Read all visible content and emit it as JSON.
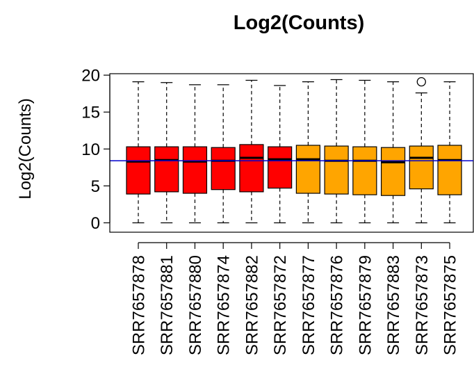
{
  "chart_data": {
    "type": "boxplot",
    "title": "Log2(Counts)",
    "xlabel": "",
    "ylabel": "Log2(Counts)",
    "ylim": [
      0,
      20
    ],
    "yticks": [
      0,
      5,
      10,
      15,
      20
    ],
    "grid": false,
    "reference_line": {
      "y": 8.4,
      "color": "#0000cc"
    },
    "colors": {
      "group_a": "#ff0000",
      "group_b": "#ffa500",
      "outline": "#000000"
    },
    "categories": [
      "SRR7657878",
      "SRR7657881",
      "SRR7657880",
      "SRR7657874",
      "SRR7657882",
      "SRR7657872",
      "SRR7657877",
      "SRR7657876",
      "SRR7657879",
      "SRR7657883",
      "SRR7657873",
      "SRR7657875"
    ],
    "groups": [
      "group_a",
      "group_a",
      "group_a",
      "group_a",
      "group_a",
      "group_a",
      "group_b",
      "group_b",
      "group_b",
      "group_b",
      "group_b",
      "group_b"
    ],
    "boxes": [
      {
        "min": 0,
        "q1": 3.9,
        "median": 8.3,
        "q3": 10.3,
        "max": 19.1,
        "outliers": []
      },
      {
        "min": 0,
        "q1": 4.2,
        "median": 8.5,
        "q3": 10.3,
        "max": 19.0,
        "outliers": []
      },
      {
        "min": 0,
        "q1": 4.0,
        "median": 8.3,
        "q3": 10.3,
        "max": 18.7,
        "outliers": []
      },
      {
        "min": 0,
        "q1": 4.5,
        "median": 8.4,
        "q3": 10.2,
        "max": 18.7,
        "outliers": []
      },
      {
        "min": 0,
        "q1": 4.2,
        "median": 8.8,
        "q3": 10.6,
        "max": 19.3,
        "outliers": []
      },
      {
        "min": 0,
        "q1": 4.7,
        "median": 8.6,
        "q3": 10.3,
        "max": 18.6,
        "outliers": []
      },
      {
        "min": 0,
        "q1": 4.0,
        "median": 8.6,
        "q3": 10.5,
        "max": 19.1,
        "outliers": []
      },
      {
        "min": 0,
        "q1": 3.9,
        "median": 8.4,
        "q3": 10.4,
        "max": 19.4,
        "outliers": []
      },
      {
        "min": 0,
        "q1": 3.8,
        "median": 8.4,
        "q3": 10.3,
        "max": 19.3,
        "outliers": []
      },
      {
        "min": 0,
        "q1": 3.7,
        "median": 8.2,
        "q3": 10.2,
        "max": 19.1,
        "outliers": []
      },
      {
        "min": 0,
        "q1": 4.6,
        "median": 8.8,
        "q3": 10.4,
        "max": 17.6,
        "outliers": [
          19.1
        ]
      },
      {
        "min": 0,
        "q1": 3.8,
        "median": 8.5,
        "q3": 10.5,
        "max": 19.1,
        "outliers": []
      }
    ]
  }
}
